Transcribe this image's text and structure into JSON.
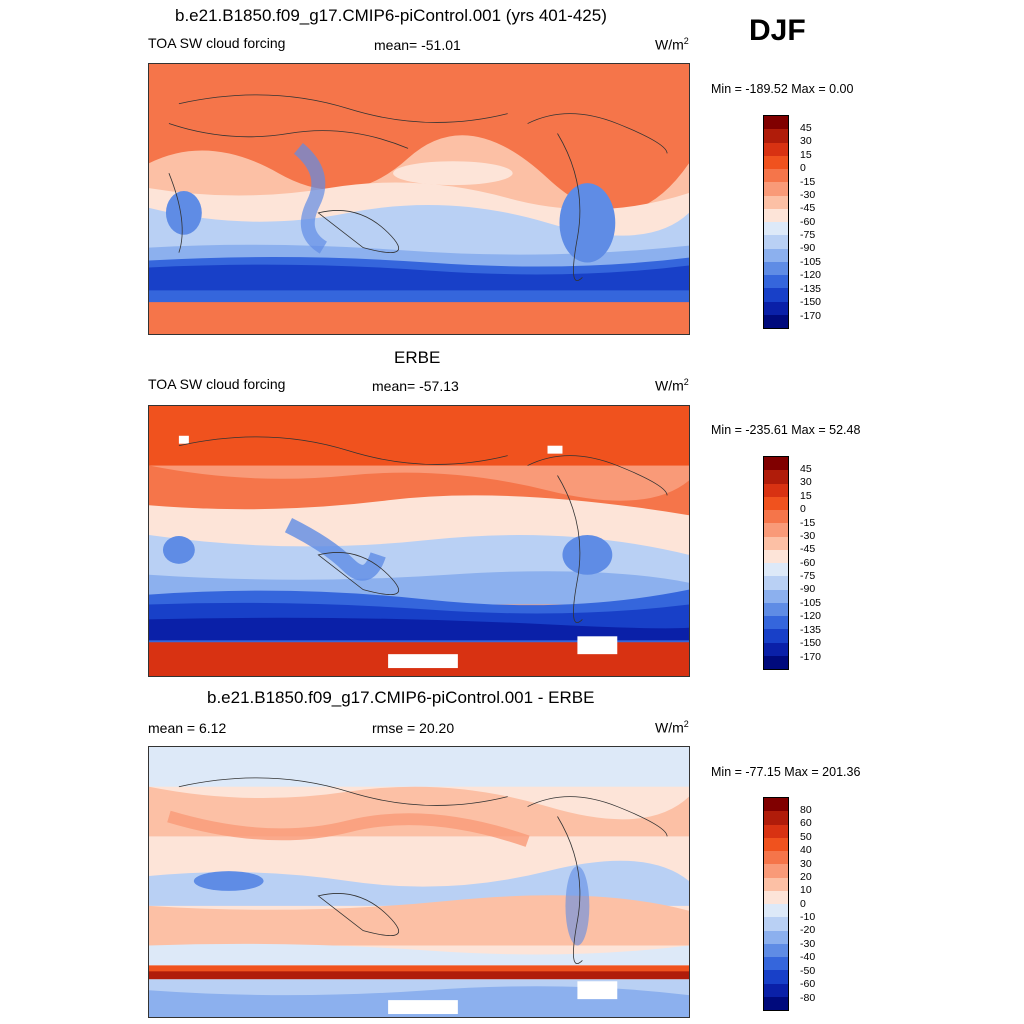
{
  "season": "DJF",
  "panels": [
    {
      "title": "b.e21.B1850.f09_g17.CMIP6-piControl.001 (yrs 401-425)",
      "left": "TOA SW cloud forcing",
      "center": "mean= -51.01",
      "unit": "W/m",
      "unit_sup": "2",
      "minmax": "Min = -189.52 Max =   0.00",
      "colorbar_labels": [
        "45",
        "30",
        "15",
        "0",
        "-15",
        "-30",
        "-45",
        "-60",
        "-75",
        "-90",
        "-105",
        "-120",
        "-135",
        "-150",
        "-170"
      ]
    },
    {
      "title": "ERBE",
      "left": "TOA SW cloud forcing",
      "center": "mean= -57.13",
      "unit": "W/m",
      "unit_sup": "2",
      "minmax": "Min = -235.61 Max =  52.48",
      "colorbar_labels": [
        "45",
        "30",
        "15",
        "0",
        "-15",
        "-30",
        "-45",
        "-60",
        "-75",
        "-90",
        "-105",
        "-120",
        "-135",
        "-150",
        "-170"
      ]
    },
    {
      "title": "b.e21.B1850.f09_g17.CMIP6-piControl.001 - ERBE",
      "left": "mean =   6.12",
      "center": "rmse =  20.20",
      "unit": "W/m",
      "unit_sup": "2",
      "minmax": "Min = -77.15 Max = 201.36",
      "colorbar_labels": [
        "80",
        "60",
        "50",
        "40",
        "30",
        "20",
        "10",
        "0",
        "-10",
        "-20",
        "-30",
        "-40",
        "-50",
        "-60",
        "-80"
      ]
    }
  ],
  "colors": {
    "palette": [
      "#800000",
      "#b01c0a",
      "#d83212",
      "#f0521e",
      "#f5754a",
      "#f99a78",
      "#fcc0a5",
      "#fde4d8",
      "#dde9f8",
      "#b9d0f4",
      "#8cb0ee",
      "#5f8ce5",
      "#3566dc",
      "#1840c8",
      "#0a20a8",
      "#000a7c"
    ]
  }
}
